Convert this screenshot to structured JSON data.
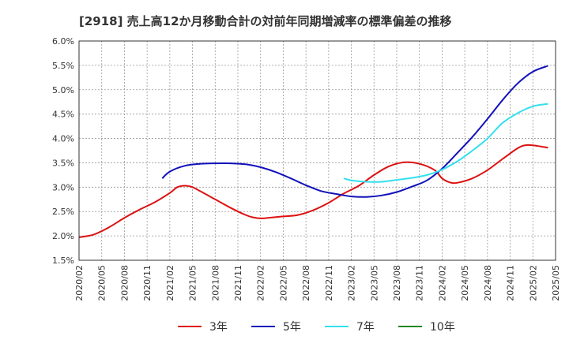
{
  "chart_data": {
    "type": "line",
    "title": "[2918]  売上高12か月移動合計の対前年同期増減率の標準偏差の推移",
    "xlabel": "",
    "ylabel": "",
    "ylim": [
      0.015,
      0.06
    ],
    "yticks": [
      "1.5%",
      "2.0%",
      "2.5%",
      "3.0%",
      "3.5%",
      "4.0%",
      "4.5%",
      "5.0%",
      "5.5%",
      "6.0%"
    ],
    "xticks": [
      "2020/02",
      "2020/05",
      "2020/08",
      "2020/11",
      "2021/02",
      "2021/05",
      "2021/08",
      "2021/11",
      "2022/02",
      "2022/05",
      "2022/08",
      "2022/11",
      "2023/02",
      "2023/05",
      "2023/08",
      "2023/11",
      "2024/02",
      "2024/05",
      "2024/08",
      "2024/11",
      "2025/02",
      "2025/05"
    ],
    "grid": true,
    "legend_position": "bottom",
    "series": [
      {
        "name": "3年",
        "color": "#dd1111",
        "points": [
          [
            "2020/02",
            0.0197
          ],
          [
            "2020/04",
            0.0203
          ],
          [
            "2020/06",
            0.0218
          ],
          [
            "2020/08",
            0.0237
          ],
          [
            "2020/10",
            0.0254
          ],
          [
            "2020/12",
            0.0269
          ],
          [
            "2021/02",
            0.0288
          ],
          [
            "2021/03",
            0.03
          ],
          [
            "2021/04",
            0.0303
          ],
          [
            "2021/05",
            0.03
          ],
          [
            "2021/06",
            0.0292
          ],
          [
            "2021/08",
            0.0275
          ],
          [
            "2021/10",
            0.0258
          ],
          [
            "2021/12",
            0.0243
          ],
          [
            "2022/01",
            0.0238
          ],
          [
            "2022/02",
            0.0236
          ],
          [
            "2022/03",
            0.0237
          ],
          [
            "2022/05",
            0.024
          ],
          [
            "2022/07",
            0.0243
          ],
          [
            "2022/09",
            0.0253
          ],
          [
            "2022/11",
            0.0268
          ],
          [
            "2023/01",
            0.0287
          ],
          [
            "2023/03",
            0.0303
          ],
          [
            "2023/05",
            0.0325
          ],
          [
            "2023/07",
            0.0343
          ],
          [
            "2023/09",
            0.0351
          ],
          [
            "2023/11",
            0.0348
          ],
          [
            "2024/01",
            0.0335
          ],
          [
            "2024/02",
            0.0318
          ],
          [
            "2024/03",
            0.031
          ],
          [
            "2024/04",
            0.0309
          ],
          [
            "2024/06",
            0.0318
          ],
          [
            "2024/08",
            0.0335
          ],
          [
            "2024/10",
            0.0358
          ],
          [
            "2024/12",
            0.038
          ],
          [
            "2025/01",
            0.0386
          ],
          [
            "2025/02",
            0.0386
          ],
          [
            "2025/04",
            0.0381
          ]
        ]
      },
      {
        "name": "5年",
        "color": "#1111bb",
        "points": [
          [
            "2021/01",
            0.0318
          ],
          [
            "2021/02",
            0.0332
          ],
          [
            "2021/04",
            0.0344
          ],
          [
            "2021/06",
            0.0348
          ],
          [
            "2021/08",
            0.0349
          ],
          [
            "2021/10",
            0.0349
          ],
          [
            "2021/12",
            0.0347
          ],
          [
            "2022/02",
            0.0341
          ],
          [
            "2022/04",
            0.0331
          ],
          [
            "2022/06",
            0.0318
          ],
          [
            "2022/08",
            0.0304
          ],
          [
            "2022/10",
            0.0292
          ],
          [
            "2022/12",
            0.0286
          ],
          [
            "2023/02",
            0.0281
          ],
          [
            "2023/04",
            0.028
          ],
          [
            "2023/06",
            0.0283
          ],
          [
            "2023/08",
            0.029
          ],
          [
            "2023/10",
            0.0301
          ],
          [
            "2023/12",
            0.0314
          ],
          [
            "2024/02",
            0.0338
          ],
          [
            "2024/04",
            0.037
          ],
          [
            "2024/06",
            0.0403
          ],
          [
            "2024/08",
            0.044
          ],
          [
            "2024/10",
            0.0479
          ],
          [
            "2024/12",
            0.0513
          ],
          [
            "2025/02",
            0.0537
          ],
          [
            "2025/04",
            0.0549
          ]
        ]
      },
      {
        "name": "7年",
        "color": "#33e0ee",
        "points": [
          [
            "2023/01",
            0.0318
          ],
          [
            "2023/02",
            0.0314
          ],
          [
            "2023/04",
            0.0311
          ],
          [
            "2023/06",
            0.0311
          ],
          [
            "2023/08",
            0.0315
          ],
          [
            "2023/10",
            0.0319
          ],
          [
            "2023/12",
            0.0325
          ],
          [
            "2024/02",
            0.0336
          ],
          [
            "2024/04",
            0.0353
          ],
          [
            "2024/06",
            0.0375
          ],
          [
            "2024/08",
            0.04
          ],
          [
            "2024/10",
            0.0432
          ],
          [
            "2024/12",
            0.0452
          ],
          [
            "2025/02",
            0.0466
          ],
          [
            "2025/04",
            0.0471
          ]
        ]
      },
      {
        "name": "10年",
        "color": "#228822",
        "points": []
      }
    ]
  }
}
